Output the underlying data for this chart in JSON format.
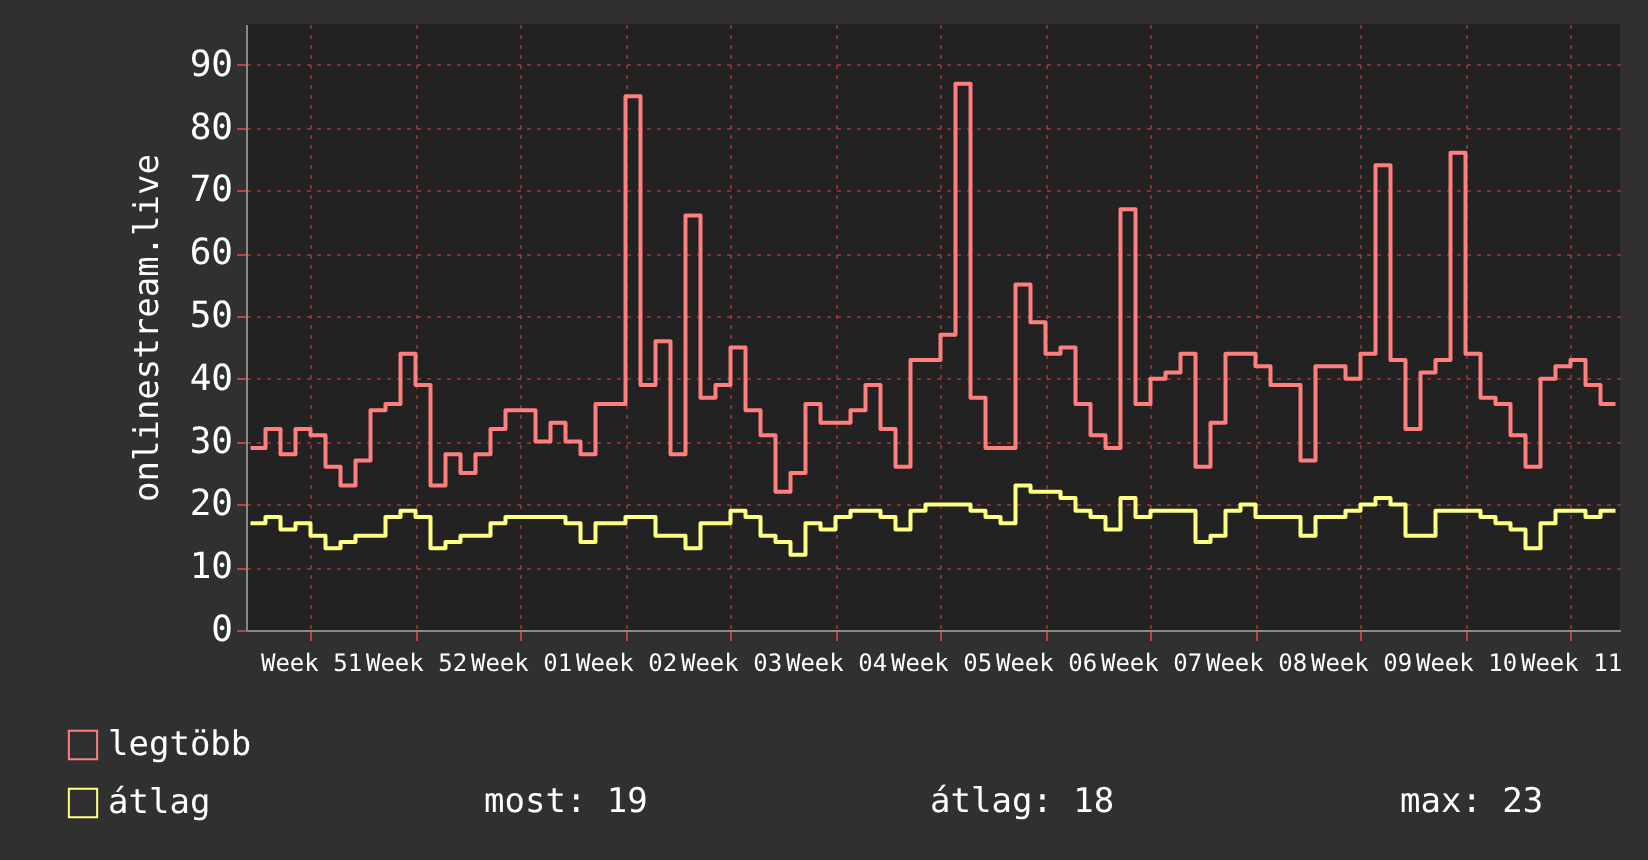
{
  "chart_data": {
    "type": "step",
    "ylabel": "onlinestream.live",
    "categories": [
      null,
      null,
      null,
      null,
      "Week 51",
      null,
      null,
      null,
      null,
      null,
      null,
      "Week 52",
      null,
      null,
      null,
      null,
      null,
      null,
      "Week 01",
      null,
      null,
      null,
      null,
      null,
      null,
      "Week 02",
      null,
      null,
      null,
      null,
      null,
      null,
      "Week 03",
      null,
      null,
      null,
      null,
      null,
      null,
      "Week 04",
      null,
      null,
      null,
      null,
      null,
      null,
      "Week 05",
      null,
      null,
      null,
      null,
      null,
      null,
      "Week 06",
      null,
      null,
      null,
      null,
      null,
      null,
      "Week 07",
      null,
      null,
      null,
      null,
      null,
      null,
      "Week 08",
      null,
      null,
      null,
      null,
      null,
      null,
      "Week 09",
      null,
      null,
      null,
      null,
      null,
      null,
      "Week 10",
      null,
      null,
      null,
      null,
      null,
      null,
      "Week 11",
      null,
      null,
      null
    ],
    "series": [
      {
        "name": "legtöbb",
        "color": "#ff7f7f",
        "values": [
          29,
          32,
          28,
          32,
          31,
          26,
          23,
          27,
          35,
          36,
          44,
          39,
          23,
          28,
          25,
          28,
          32,
          35,
          35,
          30,
          33,
          30,
          28,
          36,
          36,
          85,
          39,
          46,
          28,
          66,
          37,
          39,
          45,
          35,
          31,
          22,
          25,
          36,
          33,
          33,
          35,
          39,
          32,
          26,
          43,
          43,
          47,
          87,
          37,
          29,
          29,
          55,
          49,
          44,
          45,
          36,
          31,
          29,
          67,
          36,
          40,
          41,
          44,
          26,
          33,
          44,
          44,
          42,
          39,
          39,
          27,
          42,
          42,
          40,
          44,
          74,
          43,
          32,
          41,
          43,
          76,
          44,
          37,
          36,
          31,
          26,
          40,
          42,
          43,
          39,
          36,
          36
        ]
      },
      {
        "name": "átlag",
        "color": "#ffff80",
        "values": [
          17,
          18,
          16,
          17,
          15,
          13,
          14,
          15,
          15,
          18,
          19,
          18,
          13,
          14,
          15,
          15,
          17,
          18,
          18,
          18,
          18,
          17,
          14,
          17,
          17,
          18,
          18,
          15,
          15,
          13,
          17,
          17,
          19,
          18,
          15,
          14,
          12,
          17,
          16,
          18,
          19,
          19,
          18,
          16,
          19,
          20,
          20,
          20,
          19,
          18,
          17,
          23,
          22,
          22,
          21,
          19,
          18,
          16,
          21,
          18,
          19,
          19,
          19,
          14,
          15,
          19,
          20,
          18,
          18,
          18,
          15,
          18,
          18,
          19,
          20,
          21,
          20,
          15,
          15,
          19,
          19,
          19,
          18,
          17,
          16,
          13,
          17,
          19,
          19,
          18,
          19,
          19
        ]
      }
    ],
    "ylim": [
      0,
      96.5
    ],
    "yticks": [
      0,
      10,
      20,
      30,
      40,
      50,
      60,
      70,
      80,
      90
    ],
    "grid": true,
    "legend": "bottom left",
    "annotations": [
      "most: 19",
      "átlag: 18",
      "max: 23"
    ]
  }
}
